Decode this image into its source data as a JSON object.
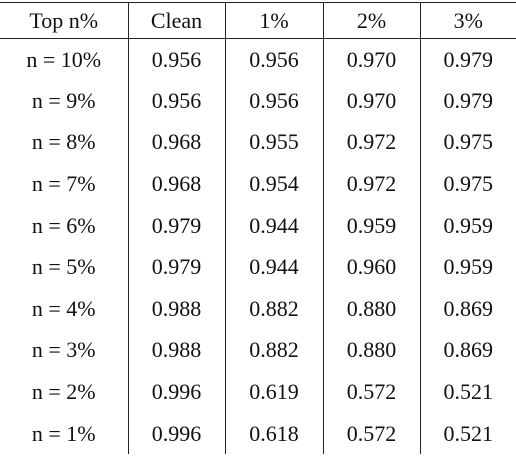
{
  "table": {
    "header": [
      "Top n%",
      "Clean",
      "1%",
      "2%",
      "3%"
    ],
    "rows": [
      [
        "n = 10%",
        "0.956",
        "0.956",
        "0.970",
        "0.979"
      ],
      [
        "n = 9%",
        "0.956",
        "0.956",
        "0.970",
        "0.979"
      ],
      [
        "n = 8%",
        "0.968",
        "0.955",
        "0.972",
        "0.975"
      ],
      [
        "n = 7%",
        "0.968",
        "0.954",
        "0.972",
        "0.975"
      ],
      [
        "n = 6%",
        "0.979",
        "0.944",
        "0.959",
        "0.959"
      ],
      [
        "n = 5%",
        "0.979",
        "0.944",
        "0.960",
        "0.959"
      ],
      [
        "n = 4%",
        "0.988",
        "0.882",
        "0.880",
        "0.869"
      ],
      [
        "n = 3%",
        "0.988",
        "0.882",
        "0.880",
        "0.869"
      ],
      [
        "n = 2%",
        "0.996",
        "0.619",
        "0.572",
        "0.521"
      ],
      [
        "n = 1%",
        "0.996",
        "0.618",
        "0.572",
        "0.521"
      ]
    ]
  }
}
